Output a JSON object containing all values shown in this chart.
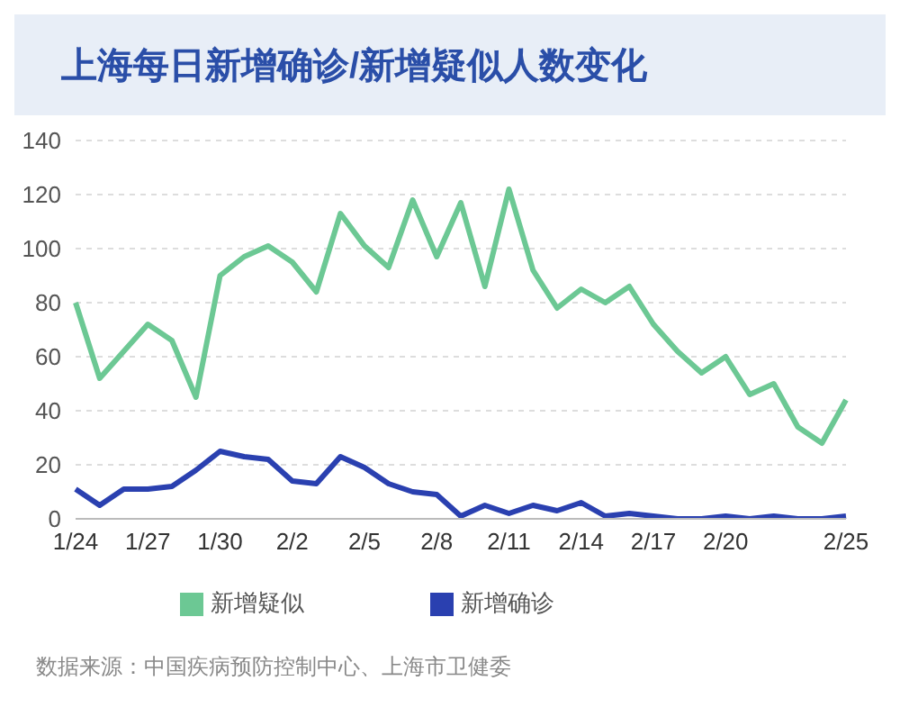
{
  "chart_data": {
    "type": "line",
    "title": "上海每日新增确诊/新增疑似人数变化",
    "categories": [
      "1/24",
      null,
      null,
      "1/27",
      null,
      null,
      "1/30",
      null,
      null,
      "2/2",
      null,
      null,
      "2/5",
      null,
      null,
      "2/8",
      null,
      null,
      "2/11",
      null,
      null,
      "2/14",
      null,
      null,
      "2/17",
      null,
      null,
      "2/20",
      null,
      null,
      null,
      null,
      "2/25"
    ],
    "series": [
      {
        "name": "新增确诊",
        "color": "#2a40b0",
        "values": [
          11,
          5,
          11,
          11,
          12,
          18,
          25,
          23,
          22,
          14,
          13,
          23,
          19,
          13,
          10,
          9,
          1,
          5,
          2,
          5,
          3,
          6,
          1,
          2,
          1,
          0,
          0,
          1,
          0,
          1,
          0,
          0,
          1
        ]
      },
      {
        "name": "新增疑似",
        "color": "#6cc894",
        "values": [
          80,
          52,
          62,
          72,
          66,
          45,
          90,
          97,
          101,
          95,
          84,
          113,
          101,
          93,
          118,
          97,
          117,
          86,
          122,
          92,
          78,
          85,
          80,
          86,
          72,
          62,
          54,
          60,
          46,
          50,
          34,
          28,
          44
        ]
      }
    ],
    "ylim": [
      0,
      140
    ],
    "yticks": [
      0,
      20,
      40,
      60,
      80,
      100,
      120,
      140
    ],
    "grid": "y",
    "legend": "bottom",
    "marker": "none",
    "line_style": "solid",
    "annotations": [
      "数据来源：中国疾病预防控制中心、上海市卫健委"
    ]
  }
}
